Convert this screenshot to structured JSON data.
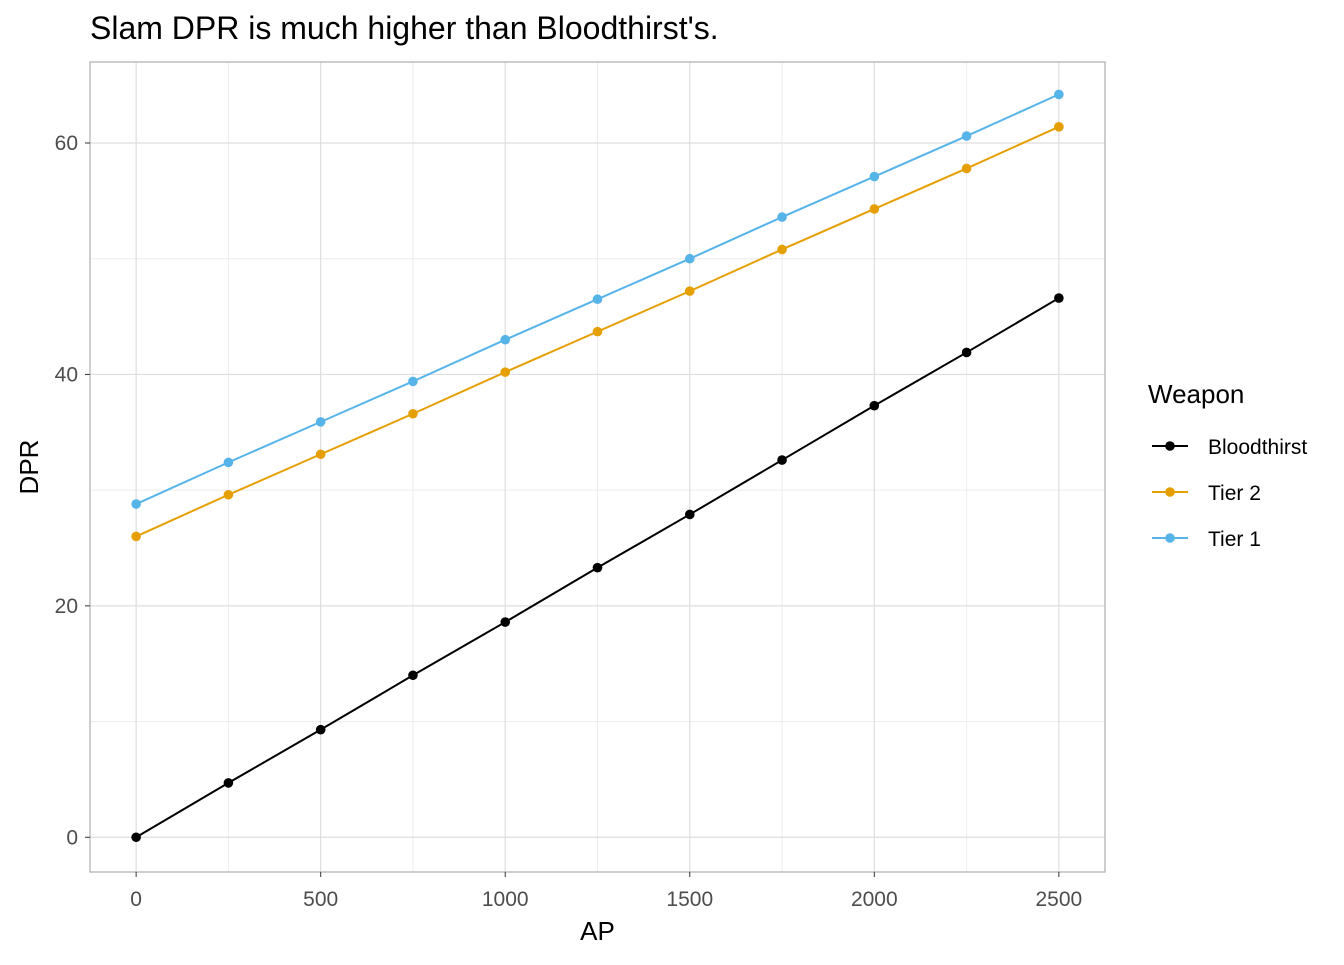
{
  "chart_data": {
    "type": "line",
    "title": "Slam DPR is much higher than Bloodthirst's.",
    "xlabel": "AP",
    "ylabel": "DPR",
    "x": [
      0,
      250,
      500,
      750,
      1000,
      1250,
      1500,
      1750,
      2000,
      2250,
      2500
    ],
    "xlim": [
      -125,
      2625
    ],
    "ylim": [
      -3,
      67
    ],
    "x_ticks": [
      0,
      500,
      1000,
      1500,
      2000,
      2500
    ],
    "y_ticks": [
      0,
      20,
      40,
      60
    ],
    "grid": true,
    "legend": {
      "title": "Weapon",
      "position": "right"
    },
    "series": [
      {
        "name": "Bloodthirst",
        "color": "#000000",
        "values": [
          0,
          4.7,
          9.3,
          14.0,
          18.6,
          23.3,
          27.9,
          32.6,
          37.3,
          41.9,
          46.6
        ]
      },
      {
        "name": "Tier 2",
        "color": "#E69F00",
        "values": [
          26.0,
          29.6,
          33.1,
          36.6,
          40.2,
          43.7,
          47.2,
          50.8,
          54.3,
          57.8,
          61.4
        ]
      },
      {
        "name": "Tier 1",
        "color": "#56B4E9",
        "values": [
          28.8,
          32.4,
          35.9,
          39.4,
          43.0,
          46.5,
          50.0,
          53.6,
          57.1,
          60.6,
          64.2
        ]
      }
    ]
  }
}
